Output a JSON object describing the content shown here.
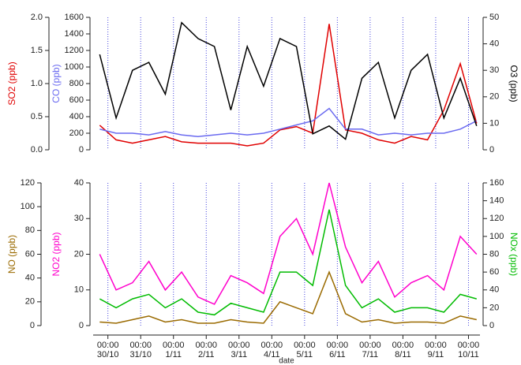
{
  "chart_data": [
    {
      "type": "line",
      "x": [
        -0.25,
        0.25,
        0.75,
        1.25,
        1.75,
        2.25,
        2.75,
        3.25,
        3.75,
        4.25,
        4.75,
        5.25,
        5.75,
        6.25,
        6.75,
        7.25,
        7.75,
        8.25,
        8.75,
        9.25,
        9.75,
        10.25,
        10.75,
        11.25
      ],
      "xlim": [
        -0.45,
        11.35
      ],
      "ylabel": "SO2 (ppb)",
      "ylim": [
        0,
        2.0
      ],
      "yticks": [
        {
          "value": 0,
          "label": "0.0"
        },
        0.5,
        {
          "value": 1,
          "label": "1.0"
        },
        1.5,
        {
          "value": 2,
          "label": "2.0"
        }
      ],
      "y3label": "CO (ppb)",
      "y3lim": [
        0,
        1600
      ],
      "y3ticks": [
        0,
        200,
        400,
        600,
        800,
        1000,
        1200,
        1400,
        1600
      ],
      "y2label": "O3 (ppb)",
      "y2lim": [
        0,
        50
      ],
      "y2ticks": [
        0,
        10,
        20,
        30,
        40,
        50
      ],
      "series": [
        {
          "name": "SO2",
          "color": "#e00000",
          "axis": "y",
          "values": [
            0.37,
            0.15,
            0.1,
            0.15,
            0.2,
            0.12,
            0.1,
            0.1,
            0.1,
            0.06,
            0.1,
            0.3,
            0.35,
            0.25,
            1.9,
            0.3,
            0.25,
            0.15,
            0.1,
            0.2,
            0.15,
            0.6,
            1.3,
            0.4
          ]
        },
        {
          "name": "CO",
          "color": "#6a6af0",
          "axis": "y3",
          "values": [
            250,
            200,
            200,
            180,
            220,
            180,
            160,
            180,
            200,
            180,
            200,
            250,
            300,
            350,
            500,
            250,
            250,
            180,
            200,
            180,
            200,
            200,
            250,
            350
          ]
        },
        {
          "name": "O3",
          "color": "#000000",
          "axis": "y2",
          "values": [
            36,
            12,
            30,
            33,
            21,
            48,
            42,
            39,
            15,
            39,
            24,
            42,
            39,
            6,
            9,
            4,
            27,
            33,
            12,
            30,
            36,
            12,
            27,
            9
          ]
        }
      ]
    },
    {
      "type": "line",
      "x": [
        -0.25,
        0.25,
        0.75,
        1.25,
        1.75,
        2.25,
        2.75,
        3.25,
        3.75,
        4.25,
        4.75,
        5.25,
        5.75,
        6.25,
        6.75,
        7.25,
        7.75,
        8.25,
        8.75,
        9.25,
        9.75,
        10.25,
        10.75,
        11.25
      ],
      "xlim": [
        -0.45,
        11.35
      ],
      "xlabel": "date",
      "xticks": [
        {
          "value": 0,
          "label": "00:00 30/10"
        },
        {
          "value": 1,
          "label": "00:00 31/10"
        },
        {
          "value": 2,
          "label": "00:00 1/11"
        },
        {
          "value": 3,
          "label": "00:00 2/11"
        },
        {
          "value": 4,
          "label": "00:00 3/11"
        },
        {
          "value": 5,
          "label": "00:00 4/11"
        },
        {
          "value": 6,
          "label": "00:00 5/11"
        },
        {
          "value": 7,
          "label": "00:00 6/11"
        },
        {
          "value": 8,
          "label": "00:00 7/11"
        },
        {
          "value": 9,
          "label": "00:00 8/11"
        },
        {
          "value": 10,
          "label": "00:00 9/11"
        },
        {
          "value": 11,
          "label": "00:00 10/11"
        }
      ],
      "ylabel": "NO (ppb)",
      "ylim": [
        0,
        120
      ],
      "yticks": [
        0,
        20,
        40,
        60,
        80,
        100,
        120
      ],
      "y3label": "NO2 (ppb)",
      "y3lim": [
        0,
        40
      ],
      "y3ticks": [
        0,
        10,
        20,
        30,
        40
      ],
      "y2label": "NOx (ppb)",
      "y2lim": [
        0,
        160
      ],
      "y2ticks": [
        0,
        20,
        40,
        60,
        80,
        100,
        120,
        140,
        160
      ],
      "series": [
        {
          "name": "NO2",
          "color": "#ff00cc",
          "axis": "y3",
          "values": [
            20,
            10,
            12,
            18,
            10,
            15,
            8,
            6,
            14,
            12,
            9,
            25,
            30,
            20,
            40,
            22,
            12,
            18,
            8,
            12,
            14,
            10,
            25,
            20
          ]
        },
        {
          "name": "NOx",
          "color": "#00bb00",
          "axis": "y2",
          "values": [
            30,
            20,
            30,
            35,
            20,
            30,
            15,
            12,
            25,
            20,
            15,
            60,
            60,
            45,
            130,
            45,
            20,
            30,
            15,
            20,
            20,
            15,
            35,
            30
          ]
        },
        {
          "name": "NO",
          "color": "#9a6a00",
          "axis": "y",
          "values": [
            3,
            2,
            5,
            8,
            3,
            5,
            2,
            2,
            5,
            3,
            2,
            20,
            15,
            10,
            45,
            10,
            3,
            5,
            2,
            3,
            3,
            2,
            8,
            5
          ]
        }
      ]
    }
  ]
}
